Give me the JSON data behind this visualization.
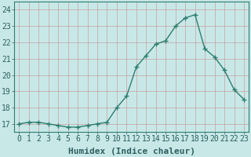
{
  "x": [
    0,
    1,
    2,
    3,
    4,
    5,
    6,
    7,
    8,
    9,
    10,
    11,
    12,
    13,
    14,
    15,
    16,
    17,
    18,
    19,
    20,
    21,
    22,
    23
  ],
  "y": [
    17.0,
    17.1,
    17.1,
    17.0,
    16.9,
    16.8,
    16.8,
    16.9,
    17.0,
    17.1,
    18.0,
    18.7,
    20.5,
    21.2,
    21.9,
    22.1,
    23.0,
    23.5,
    23.7,
    21.6,
    21.1,
    20.3,
    19.1,
    18.5
  ],
  "line_color": "#2e7d6e",
  "marker": "+",
  "markersize": 5,
  "linewidth": 1.0,
  "bg_color": "#c8e8e8",
  "grid_color_major": "#c8a0a0",
  "grid_color_minor": "#ddc0c0",
  "xlabel": "Humidex (Indice chaleur)",
  "xlabel_fontsize": 8,
  "tick_fontsize": 7,
  "tick_color": "#2e5e5e",
  "ylim": [
    16.5,
    24.5
  ],
  "yticks": [
    17,
    18,
    19,
    20,
    21,
    22,
    23,
    24
  ],
  "xticks": [
    0,
    1,
    2,
    3,
    4,
    5,
    6,
    7,
    8,
    9,
    10,
    11,
    12,
    13,
    14,
    15,
    16,
    17,
    18,
    19,
    20,
    21,
    22,
    23
  ],
  "spine_color": "#2e7d6e",
  "figsize": [
    3.2,
    2.0
  ],
  "dpi": 100
}
